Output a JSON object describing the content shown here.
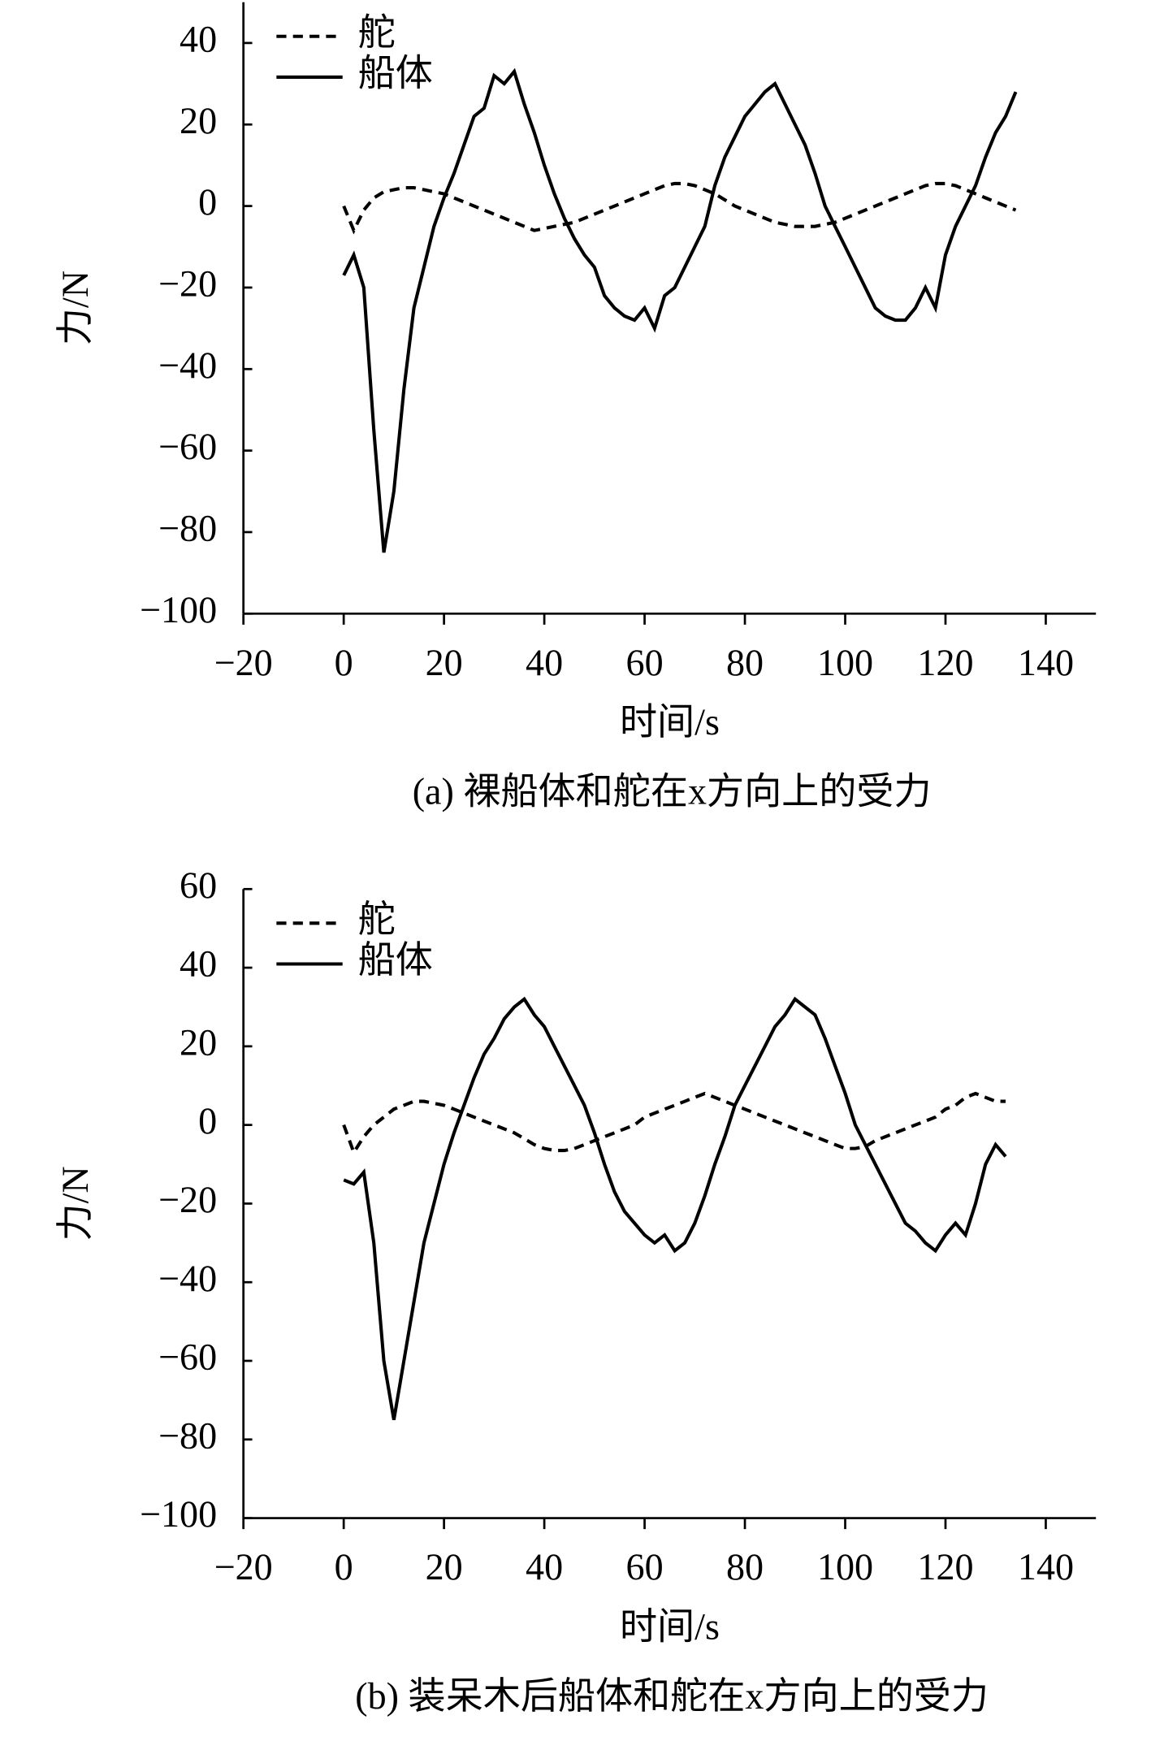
{
  "chart_data": [
    {
      "type": "line",
      "xlabel": "时间/s",
      "ylabel": "力/N",
      "caption": "(a) 裸船体和舵在x方向上的受力",
      "legend": "upper left",
      "xlim": [
        -20,
        150
      ],
      "ylim": [
        -100,
        50
      ],
      "xticks": [
        {
          "value": -20,
          "label": "−20"
        },
        0,
        20,
        40,
        60,
        80,
        100,
        120,
        140
      ],
      "yticks": [
        {
          "value": -100,
          "label": "−100"
        },
        {
          "value": -80,
          "label": "−80"
        },
        {
          "value": -60,
          "label": "−60"
        },
        {
          "value": -40,
          "label": "−40"
        },
        {
          "value": -20,
          "label": "−20"
        },
        0,
        20,
        40
      ],
      "x": [
        0,
        2,
        4,
        6,
        8,
        10,
        12,
        14,
        16,
        18,
        20,
        22,
        24,
        26,
        28,
        30,
        32,
        34,
        36,
        38,
        40,
        42,
        44,
        46,
        48,
        50,
        52,
        54,
        56,
        58,
        60,
        62,
        64,
        66,
        68,
        70,
        72,
        74,
        76,
        78,
        80,
        82,
        84,
        86,
        88,
        90,
        92,
        94,
        96,
        98,
        100,
        102,
        104,
        106,
        108,
        110,
        112,
        114,
        116,
        118,
        120,
        122,
        124,
        126,
        128,
        130,
        132,
        134
      ],
      "series": [
        {
          "name": "舵",
          "color": "#000000",
          "dash": true,
          "values": [
            0,
            -6,
            -1,
            2,
            3.5,
            4,
            4.5,
            4.5,
            4,
            3.5,
            3,
            2,
            1,
            0,
            -1,
            -2,
            -3,
            -4,
            -5,
            -6,
            -5.5,
            -5,
            -4.5,
            -4,
            -3,
            -2,
            -1,
            0,
            1,
            2,
            3,
            4,
            5,
            5.5,
            5.5,
            5,
            4,
            3,
            1.5,
            0,
            -1,
            -2,
            -3,
            -4,
            -4.5,
            -5,
            -5,
            -5,
            -4.5,
            -4,
            -3,
            -2,
            -1,
            0,
            1,
            2,
            3,
            4,
            5,
            5.5,
            5.5,
            5,
            4,
            3,
            2,
            1,
            0,
            -1
          ]
        },
        {
          "name": "船体",
          "color": "#000000",
          "dash": false,
          "values": [
            -17,
            -12,
            -20,
            -55,
            -85,
            -70,
            -45,
            -25,
            -15,
            -5,
            2,
            8,
            15,
            22,
            24,
            32,
            30,
            33,
            25,
            18,
            10,
            3,
            -3,
            -8,
            -12,
            -15,
            -22,
            -25,
            -27,
            -28,
            -25,
            -30,
            -22,
            -20,
            -15,
            -10,
            -5,
            5,
            12,
            17,
            22,
            25,
            28,
            30,
            25,
            20,
            15,
            8,
            0,
            -5,
            -10,
            -15,
            -20,
            -25,
            -27,
            -28,
            -28,
            -25,
            -20,
            -25,
            -12,
            -5,
            0,
            5,
            12,
            18,
            22,
            28
          ]
        }
      ]
    },
    {
      "type": "line",
      "xlabel": "时间/s",
      "ylabel": "力/N",
      "caption": "(b) 装呆木后船体和舵在x方向上的受力",
      "legend": "upper left",
      "xlim": [
        -20,
        150
      ],
      "ylim": [
        -100,
        60
      ],
      "xticks": [
        {
          "value": -20,
          "label": "−20"
        },
        0,
        20,
        40,
        60,
        80,
        100,
        120,
        140
      ],
      "yticks": [
        {
          "value": -100,
          "label": "−100"
        },
        {
          "value": -80,
          "label": "−80"
        },
        {
          "value": -60,
          "label": "−60"
        },
        {
          "value": -40,
          "label": "−40"
        },
        {
          "value": -20,
          "label": "−20"
        },
        0,
        20,
        40,
        60
      ],
      "x": [
        0,
        2,
        4,
        6,
        8,
        10,
        12,
        14,
        16,
        18,
        20,
        22,
        24,
        26,
        28,
        30,
        32,
        34,
        36,
        38,
        40,
        42,
        44,
        46,
        48,
        50,
        52,
        54,
        56,
        58,
        60,
        62,
        64,
        66,
        68,
        70,
        72,
        74,
        76,
        78,
        80,
        82,
        84,
        86,
        88,
        90,
        92,
        94,
        96,
        98,
        100,
        102,
        104,
        106,
        108,
        110,
        112,
        114,
        116,
        118,
        120,
        122,
        124,
        126,
        128,
        130,
        132
      ],
      "series": [
        {
          "name": "舵",
          "color": "#000000",
          "dash": true,
          "values": [
            0,
            -7,
            -3,
            0,
            2,
            4,
            5,
            6,
            6,
            5.5,
            5,
            4,
            3,
            2,
            1,
            0,
            -1,
            -2,
            -3.5,
            -5,
            -6,
            -6.5,
            -6.5,
            -6,
            -5,
            -4,
            -3,
            -2,
            -1,
            0,
            2,
            3,
            4,
            5,
            6,
            7,
            8,
            7,
            6,
            5,
            4,
            3,
            2,
            1,
            0,
            -1,
            -2,
            -3,
            -4,
            -5,
            -6,
            -6,
            -5.5,
            -4,
            -3,
            -2,
            -1,
            0,
            1,
            2,
            4,
            5,
            7,
            8,
            7,
            6,
            6
          ]
        },
        {
          "name": "船体",
          "color": "#000000",
          "dash": false,
          "values": [
            -14,
            -15,
            -12,
            -30,
            -60,
            -75,
            -60,
            -45,
            -30,
            -20,
            -10,
            -2,
            5,
            12,
            18,
            22,
            27,
            30,
            32,
            28,
            25,
            20,
            15,
            10,
            5,
            -2,
            -10,
            -17,
            -22,
            -25,
            -28,
            -30,
            -28,
            -32,
            -30,
            -25,
            -18,
            -10,
            -3,
            5,
            10,
            15,
            20,
            25,
            28,
            32,
            30,
            28,
            22,
            15,
            8,
            0,
            -5,
            -10,
            -15,
            -20,
            -25,
            -27,
            -30,
            -32,
            -28,
            -25,
            -28,
            -20,
            -10,
            -5,
            -8
          ]
        }
      ]
    }
  ]
}
